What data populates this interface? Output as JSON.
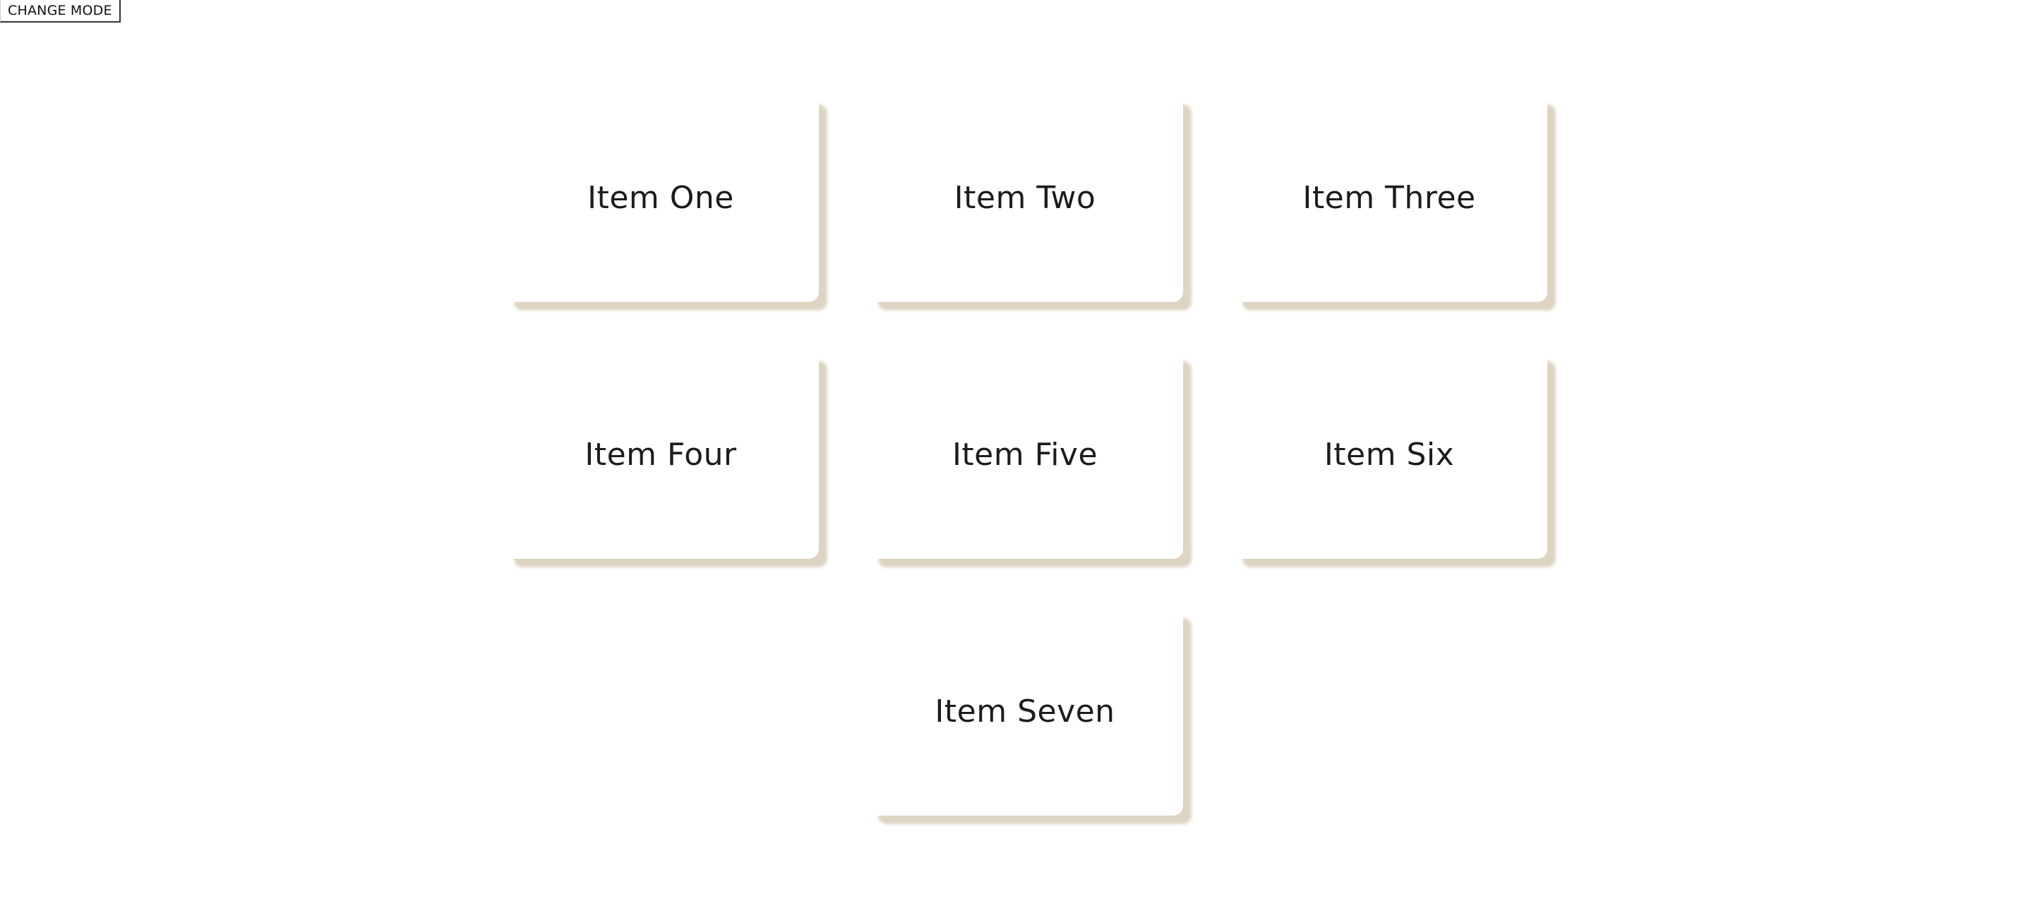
{
  "toolbar": {
    "mode_button_label": "CHANGE MODE"
  },
  "cards": [
    {
      "label": "Item One"
    },
    {
      "label": "Item Two"
    },
    {
      "label": "Item Three"
    },
    {
      "label": "Item Four"
    },
    {
      "label": "Item Five"
    },
    {
      "label": "Item Six"
    },
    {
      "label": "Item Seven"
    }
  ],
  "colors": {
    "background": "#ffffff",
    "card": "#ffffff",
    "card_shadow": "#ddd5c1",
    "text": "#1c1c1c"
  }
}
